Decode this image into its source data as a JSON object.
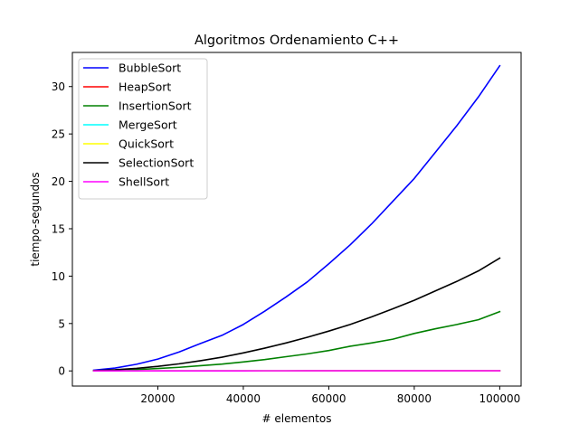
{
  "chart_data": {
    "type": "line",
    "title": "Algoritmos Ordenamiento C++",
    "xlabel": "# elementos",
    "ylabel": "tiempo-segundos",
    "xlim": [
      0,
      105000
    ],
    "ylim": [
      -1.6,
      33.6
    ],
    "xticks": [
      20000,
      40000,
      60000,
      80000,
      100000
    ],
    "xtick_labels": [
      "20000",
      "40000",
      "60000",
      "80000",
      "100000"
    ],
    "yticks": [
      0,
      5,
      10,
      15,
      20,
      25,
      30
    ],
    "ytick_labels": [
      "0",
      "5",
      "10",
      "15",
      "20",
      "25",
      "30"
    ],
    "grid": false,
    "legend_position": "top-left",
    "x": [
      5000,
      10000,
      15000,
      20000,
      25000,
      30000,
      35000,
      40000,
      45000,
      50000,
      55000,
      60000,
      65000,
      70000,
      75000,
      80000,
      85000,
      90000,
      95000,
      100000
    ],
    "series": [
      {
        "name": "BubbleSort",
        "color": "#0000ff",
        "values": [
          0.08,
          0.3,
          0.7,
          1.25,
          2.0,
          2.9,
          3.75,
          4.9,
          6.3,
          7.8,
          9.4,
          11.3,
          13.3,
          15.5,
          17.9,
          20.3,
          23.1,
          25.9,
          28.9,
          32.2
        ]
      },
      {
        "name": "HeapSort",
        "color": "#ff0000",
        "values": [
          0.001,
          0.002,
          0.003,
          0.004,
          0.005,
          0.006,
          0.007,
          0.008,
          0.009,
          0.01,
          0.011,
          0.012,
          0.013,
          0.014,
          0.015,
          0.016,
          0.017,
          0.018,
          0.019,
          0.02
        ]
      },
      {
        "name": "InsertionSort",
        "color": "#008000",
        "values": [
          0.02,
          0.06,
          0.14,
          0.25,
          0.38,
          0.55,
          0.72,
          0.95,
          1.2,
          1.5,
          1.8,
          2.15,
          2.6,
          2.95,
          3.35,
          3.95,
          4.45,
          4.9,
          5.4,
          6.25
        ]
      },
      {
        "name": "MergeSort",
        "color": "#00ffff",
        "values": [
          0.001,
          0.002,
          0.003,
          0.004,
          0.005,
          0.006,
          0.007,
          0.008,
          0.009,
          0.01,
          0.011,
          0.012,
          0.013,
          0.014,
          0.015,
          0.016,
          0.017,
          0.018,
          0.019,
          0.02
        ]
      },
      {
        "name": "QuickSort",
        "color": "#ffff00",
        "values": [
          0.001,
          0.002,
          0.003,
          0.004,
          0.005,
          0.006,
          0.007,
          0.008,
          0.009,
          0.01,
          0.011,
          0.012,
          0.013,
          0.014,
          0.015,
          0.016,
          0.017,
          0.018,
          0.019,
          0.02
        ]
      },
      {
        "name": "SelectionSort",
        "color": "#000000",
        "values": [
          0.03,
          0.12,
          0.27,
          0.48,
          0.75,
          1.08,
          1.45,
          1.9,
          2.4,
          2.95,
          3.55,
          4.2,
          4.9,
          5.7,
          6.55,
          7.45,
          8.45,
          9.45,
          10.55,
          11.9
        ]
      },
      {
        "name": "ShellSort",
        "color": "#ff00ff",
        "values": [
          0.001,
          0.002,
          0.003,
          0.004,
          0.005,
          0.006,
          0.007,
          0.008,
          0.009,
          0.01,
          0.011,
          0.012,
          0.013,
          0.014,
          0.015,
          0.016,
          0.017,
          0.018,
          0.019,
          0.02
        ]
      }
    ]
  }
}
